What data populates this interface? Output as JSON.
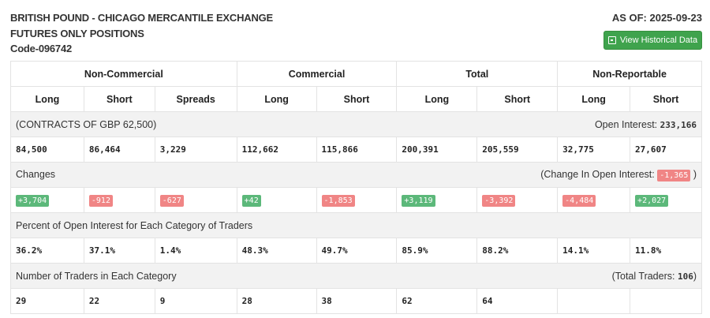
{
  "header": {
    "title1": "BRITISH POUND - CHICAGO MERCANTILE EXCHANGE",
    "title2": "FUTURES ONLY POSITIONS",
    "code": "Code-096742",
    "as_of": "AS OF: 2025-09-23",
    "button": "View Historical Data"
  },
  "groups": [
    "Non-Commercial",
    "Commercial",
    "Total",
    "Non-Reportable"
  ],
  "columns": [
    "Long",
    "Short",
    "Spreads",
    "Long",
    "Short",
    "Long",
    "Short",
    "Long",
    "Short"
  ],
  "contracts": {
    "label": "(CONTRACTS OF GBP 62,500)",
    "oi_label": "Open Interest:",
    "oi_value": "233,166",
    "values": [
      "84,500",
      "86,464",
      "3,229",
      "112,662",
      "115,866",
      "200,391",
      "205,559",
      "32,775",
      "27,607"
    ]
  },
  "changes": {
    "label": "Changes",
    "oi_label": "(Change In Open Interest:",
    "oi_value": "-1,365",
    "close": ")",
    "values": [
      "+3,704",
      "-912",
      "-627",
      "+42",
      "-1,853",
      "+3,119",
      "-3,392",
      "-4,484",
      "+2,027"
    ]
  },
  "percent": {
    "label": "Percent of Open Interest for Each Category of Traders",
    "values": [
      "36.2%",
      "37.1%",
      "1.4%",
      "48.3%",
      "49.7%",
      "85.9%",
      "88.2%",
      "14.1%",
      "11.8%"
    ]
  },
  "traders": {
    "label": "Number of Traders in Each Category",
    "total_label": "(Total Traders:",
    "total_value": "106",
    "close": ")",
    "values": [
      "29",
      "22",
      "9",
      "28",
      "38",
      "62",
      "64",
      "",
      ""
    ]
  },
  "colors": {
    "positive": "#5cb87a",
    "negative": "#f08585",
    "button": "#3fa34d"
  }
}
